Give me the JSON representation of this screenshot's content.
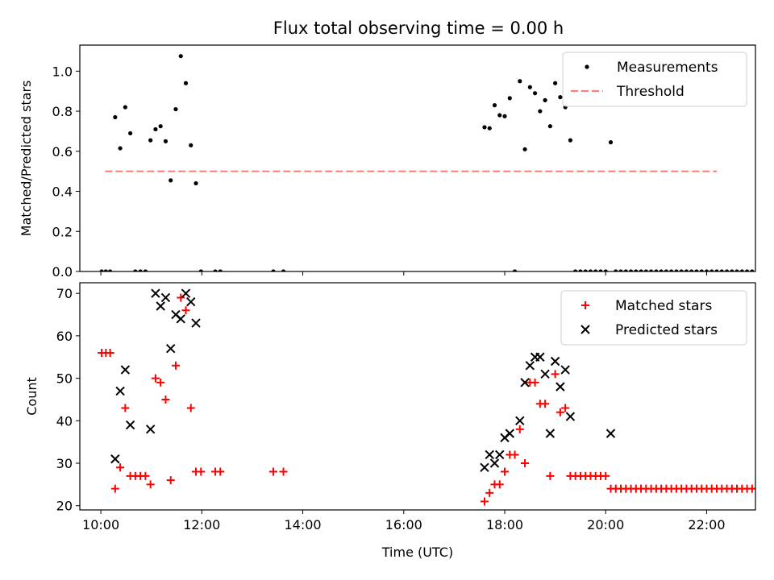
{
  "figure": {
    "title": "Flux total observing time = 0.00 h"
  },
  "chart_data": [
    {
      "type": "scatter",
      "ylabel": "Matched/Predicted stars",
      "xlabel": "",
      "xlim": [
        "09:35",
        "22:58"
      ],
      "ylim": [
        0,
        1.13
      ],
      "yticks": [
        0.0,
        0.2,
        0.4,
        0.6,
        0.8,
        1.0
      ],
      "ytick_labels": [
        "0.0",
        "0.2",
        "0.4",
        "0.6",
        "0.8",
        "1.0"
      ],
      "xticks": [
        "10:00",
        "12:00",
        "14:00",
        "16:00",
        "18:00",
        "20:00",
        "22:00"
      ],
      "legend_position": "top-right",
      "series": [
        {
          "name": "Measurements",
          "marker": "dot",
          "color": "#000000",
          "points": [
            [
              "10:01",
              0
            ],
            [
              "10:06",
              0
            ],
            [
              "10:11",
              0
            ],
            [
              "10:17",
              0.77
            ],
            [
              "10:23",
              0.615
            ],
            [
              "10:29",
              0.82
            ],
            [
              "10:35",
              0.69
            ],
            [
              "10:41",
              0
            ],
            [
              "10:47",
              0
            ],
            [
              "10:53",
              0
            ],
            [
              "10:59",
              0.655
            ],
            [
              "11:05",
              0.71
            ],
            [
              "11:11",
              0.725
            ],
            [
              "11:17",
              0.65
            ],
            [
              "11:23",
              0.455
            ],
            [
              "11:29",
              0.81
            ],
            [
              "11:35",
              1.075
            ],
            [
              "11:41",
              0.94
            ],
            [
              "11:47",
              0.63
            ],
            [
              "11:53",
              0.44
            ],
            [
              "11:59",
              0
            ],
            [
              "12:16",
              0
            ],
            [
              "12:22",
              0
            ],
            [
              "13:25",
              0
            ],
            [
              "13:37",
              0
            ],
            [
              "17:36",
              0.72
            ],
            [
              "17:42",
              0.715
            ],
            [
              "17:48",
              0.83
            ],
            [
              "17:54",
              0.78
            ],
            [
              "18:00",
              0.775
            ],
            [
              "18:06",
              0.865
            ],
            [
              "18:12",
              0
            ],
            [
              "18:18",
              0.95
            ],
            [
              "18:24",
              0.61
            ],
            [
              "18:30",
              0.92
            ],
            [
              "18:36",
              0.89
            ],
            [
              "18:42",
              0.8
            ],
            [
              "18:48",
              0.855
            ],
            [
              "18:54",
              0.725
            ],
            [
              "19:00",
              0.94
            ],
            [
              "19:06",
              0.87
            ],
            [
              "19:12",
              0.82
            ],
            [
              "19:18",
              0.655
            ],
            [
              "19:24",
              0
            ],
            [
              "19:30",
              0
            ],
            [
              "19:36",
              0
            ],
            [
              "19:42",
              0
            ],
            [
              "19:48",
              0
            ],
            [
              "19:54",
              0
            ],
            [
              "20:00",
              0
            ],
            [
              "20:06",
              0.645
            ],
            [
              "20:12",
              0
            ],
            [
              "20:18",
              0
            ],
            [
              "20:24",
              0
            ],
            [
              "20:30",
              0
            ],
            [
              "20:36",
              0
            ],
            [
              "20:42",
              0
            ],
            [
              "20:48",
              0
            ],
            [
              "20:54",
              0
            ],
            [
              "21:00",
              0
            ],
            [
              "21:06",
              0
            ],
            [
              "21:12",
              0
            ],
            [
              "21:18",
              0
            ],
            [
              "21:24",
              0
            ],
            [
              "21:30",
              0
            ],
            [
              "21:36",
              0
            ],
            [
              "21:42",
              0
            ],
            [
              "21:48",
              0
            ],
            [
              "21:54",
              0
            ],
            [
              "22:00",
              0
            ],
            [
              "22:06",
              0
            ],
            [
              "22:12",
              0
            ],
            [
              "22:18",
              0
            ],
            [
              "22:24",
              0
            ],
            [
              "22:30",
              0
            ],
            [
              "22:36",
              0
            ],
            [
              "22:42",
              0
            ],
            [
              "22:48",
              0
            ],
            [
              "22:54",
              0
            ],
            [
              "23:00",
              0
            ]
          ]
        },
        {
          "name": "Threshold",
          "marker": "dashed-line",
          "color": "#ff7f7f",
          "points": [
            [
              "10:05",
              0.5
            ],
            [
              "22:12",
              0.5
            ]
          ]
        }
      ]
    },
    {
      "type": "scatter",
      "ylabel": "Count",
      "xlabel": "Time (UTC)",
      "xlim": [
        "09:35",
        "22:58"
      ],
      "ylim": [
        19,
        72.5
      ],
      "yticks": [
        20,
        30,
        40,
        50,
        60,
        70
      ],
      "ytick_labels": [
        "20",
        "30",
        "40",
        "50",
        "60",
        "70"
      ],
      "xticks": [
        "10:00",
        "12:00",
        "14:00",
        "16:00",
        "18:00",
        "20:00",
        "22:00"
      ],
      "xtick_labels": [
        "10:00",
        "12:00",
        "14:00",
        "16:00",
        "18:00",
        "20:00",
        "22:00"
      ],
      "legend_position": "top-right",
      "series": [
        {
          "name": "Matched stars",
          "marker": "plus",
          "color": "#ff0000",
          "points": [
            [
              "10:01",
              56
            ],
            [
              "10:06",
              56
            ],
            [
              "10:11",
              56
            ],
            [
              "10:17",
              24
            ],
            [
              "10:23",
              29
            ],
            [
              "10:29",
              43
            ],
            [
              "10:35",
              27
            ],
            [
              "10:41",
              27
            ],
            [
              "10:47",
              27
            ],
            [
              "10:53",
              27
            ],
            [
              "10:59",
              25
            ],
            [
              "11:05",
              50
            ],
            [
              "11:11",
              49
            ],
            [
              "11:17",
              45
            ],
            [
              "11:23",
              26
            ],
            [
              "11:29",
              53
            ],
            [
              "11:35",
              69
            ],
            [
              "11:41",
              66
            ],
            [
              "11:47",
              43
            ],
            [
              "11:53",
              28
            ],
            [
              "11:59",
              28
            ],
            [
              "12:16",
              28
            ],
            [
              "12:22",
              28
            ],
            [
              "13:25",
              28
            ],
            [
              "13:37",
              28
            ],
            [
              "17:36",
              21
            ],
            [
              "17:42",
              23
            ],
            [
              "17:48",
              25
            ],
            [
              "17:54",
              25
            ],
            [
              "18:00",
              28
            ],
            [
              "18:06",
              32
            ],
            [
              "18:12",
              32
            ],
            [
              "18:18",
              38
            ],
            [
              "18:24",
              30
            ],
            [
              "18:30",
              49
            ],
            [
              "18:36",
              49
            ],
            [
              "18:42",
              44
            ],
            [
              "18:48",
              44
            ],
            [
              "18:54",
              27
            ],
            [
              "19:00",
              51
            ],
            [
              "19:06",
              42
            ],
            [
              "19:12",
              43
            ],
            [
              "19:18",
              27
            ],
            [
              "19:24",
              27
            ],
            [
              "19:30",
              27
            ],
            [
              "19:36",
              27
            ],
            [
              "19:42",
              27
            ],
            [
              "19:48",
              27
            ],
            [
              "19:54",
              27
            ],
            [
              "20:00",
              27
            ],
            [
              "20:06",
              24
            ],
            [
              "20:12",
              24
            ],
            [
              "20:18",
              24
            ],
            [
              "20:24",
              24
            ],
            [
              "20:30",
              24
            ],
            [
              "20:36",
              24
            ],
            [
              "20:42",
              24
            ],
            [
              "20:48",
              24
            ],
            [
              "20:54",
              24
            ],
            [
              "21:00",
              24
            ],
            [
              "21:06",
              24
            ],
            [
              "21:12",
              24
            ],
            [
              "21:18",
              24
            ],
            [
              "21:24",
              24
            ],
            [
              "21:30",
              24
            ],
            [
              "21:36",
              24
            ],
            [
              "21:42",
              24
            ],
            [
              "21:48",
              24
            ],
            [
              "21:54",
              24
            ],
            [
              "22:00",
              24
            ],
            [
              "22:06",
              24
            ],
            [
              "22:12",
              24
            ],
            [
              "22:18",
              24
            ],
            [
              "22:24",
              24
            ],
            [
              "22:30",
              24
            ],
            [
              "22:36",
              24
            ],
            [
              "22:42",
              24
            ],
            [
              "22:48",
              24
            ],
            [
              "22:54",
              24
            ],
            [
              "23:00",
              24
            ]
          ]
        },
        {
          "name": "Predicted stars",
          "marker": "cross",
          "color": "#000000",
          "points": [
            [
              "10:17",
              31
            ],
            [
              "10:23",
              47
            ],
            [
              "10:29",
              52
            ],
            [
              "10:35",
              39
            ],
            [
              "10:59",
              38
            ],
            [
              "11:05",
              70
            ],
            [
              "11:11",
              67
            ],
            [
              "11:17",
              69
            ],
            [
              "11:23",
              57
            ],
            [
              "11:29",
              65
            ],
            [
              "11:35",
              64
            ],
            [
              "11:41",
              70
            ],
            [
              "11:47",
              68
            ],
            [
              "11:53",
              63
            ],
            [
              "17:36",
              29
            ],
            [
              "17:42",
              32
            ],
            [
              "17:48",
              30
            ],
            [
              "17:54",
              32
            ],
            [
              "18:00",
              36
            ],
            [
              "18:06",
              37
            ],
            [
              "18:18",
              40
            ],
            [
              "18:24",
              49
            ],
            [
              "18:30",
              53
            ],
            [
              "18:36",
              55
            ],
            [
              "18:42",
              55
            ],
            [
              "18:48",
              51
            ],
            [
              "18:54",
              37
            ],
            [
              "19:00",
              54
            ],
            [
              "19:06",
              48
            ],
            [
              "19:12",
              52
            ],
            [
              "19:18",
              41
            ],
            [
              "20:06",
              37
            ]
          ]
        }
      ]
    }
  ]
}
